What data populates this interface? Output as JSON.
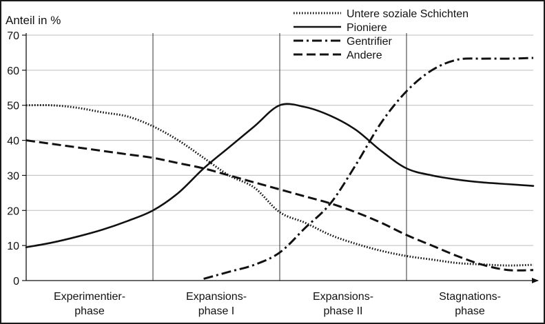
{
  "chart_data": {
    "type": "line",
    "title": "",
    "ylabel": "Anteil in %",
    "xlabel": "",
    "ylim": [
      0,
      70
    ],
    "yticks": [
      0,
      10,
      20,
      30,
      40,
      50,
      60,
      70
    ],
    "grid": "horizontal",
    "legend_position": "top-right",
    "x_range": [
      0,
      4
    ],
    "phase_boundaries": [
      1,
      2,
      3
    ],
    "phases": [
      {
        "lines": [
          "Experimentier-",
          "phase"
        ],
        "x": 0.5
      },
      {
        "lines": [
          "Expansions-",
          "phase I"
        ],
        "x": 1.5
      },
      {
        "lines": [
          "Expansions-",
          "phase II"
        ],
        "x": 2.5
      },
      {
        "lines": [
          "Stagnations-",
          "phase"
        ],
        "x": 3.5
      }
    ],
    "series": [
      {
        "name": "Untere soziale Schichten",
        "style": "dotted",
        "x": [
          0,
          0.2,
          0.4,
          0.6,
          0.8,
          1.0,
          1.2,
          1.4,
          1.6,
          1.8,
          2.0,
          2.2,
          2.4,
          2.6,
          2.8,
          3.0,
          3.2,
          3.4,
          3.6,
          3.8,
          4.0
        ],
        "y": [
          50,
          50,
          49.3,
          48,
          46.8,
          44,
          40,
          35,
          30,
          26.5,
          19.5,
          16.5,
          13,
          10.5,
          8.5,
          7,
          6,
          5,
          4.6,
          4.3,
          4.5
        ]
      },
      {
        "name": "Pioniere",
        "style": "solid",
        "x": [
          0,
          0.2,
          0.4,
          0.6,
          0.8,
          1.0,
          1.2,
          1.4,
          1.6,
          1.8,
          2.0,
          2.2,
          2.4,
          2.6,
          2.8,
          3.0,
          3.2,
          3.4,
          3.6,
          3.8,
          4.0
        ],
        "y": [
          9.5,
          10.8,
          12.5,
          14.5,
          17,
          20,
          25,
          32,
          38,
          44,
          50,
          49.5,
          47,
          43,
          37,
          32,
          30,
          28.8,
          28,
          27.5,
          27
        ]
      },
      {
        "name": "Gentrifier",
        "style": "dashdot",
        "x": [
          1.4,
          1.6,
          1.8,
          2.0,
          2.2,
          2.4,
          2.6,
          2.8,
          3.0,
          3.2,
          3.4,
          3.6,
          3.8,
          4.0
        ],
        "y": [
          0.5,
          2.5,
          4.5,
          8,
          15,
          22,
          33,
          45,
          54,
          60,
          63,
          63.3,
          63.3,
          63.5
        ]
      },
      {
        "name": "Andere",
        "style": "dashed",
        "x": [
          0,
          0.2,
          0.4,
          0.6,
          0.8,
          1.0,
          1.2,
          1.4,
          1.6,
          1.8,
          2.0,
          2.2,
          2.4,
          2.6,
          2.8,
          3.0,
          3.2,
          3.4,
          3.6,
          3.8,
          4.0
        ],
        "y": [
          40,
          39,
          38,
          37,
          36,
          35,
          33.5,
          32,
          30,
          28,
          26,
          24,
          22,
          19.5,
          16.5,
          13,
          10,
          7,
          4.5,
          3,
          3
        ]
      }
    ]
  }
}
